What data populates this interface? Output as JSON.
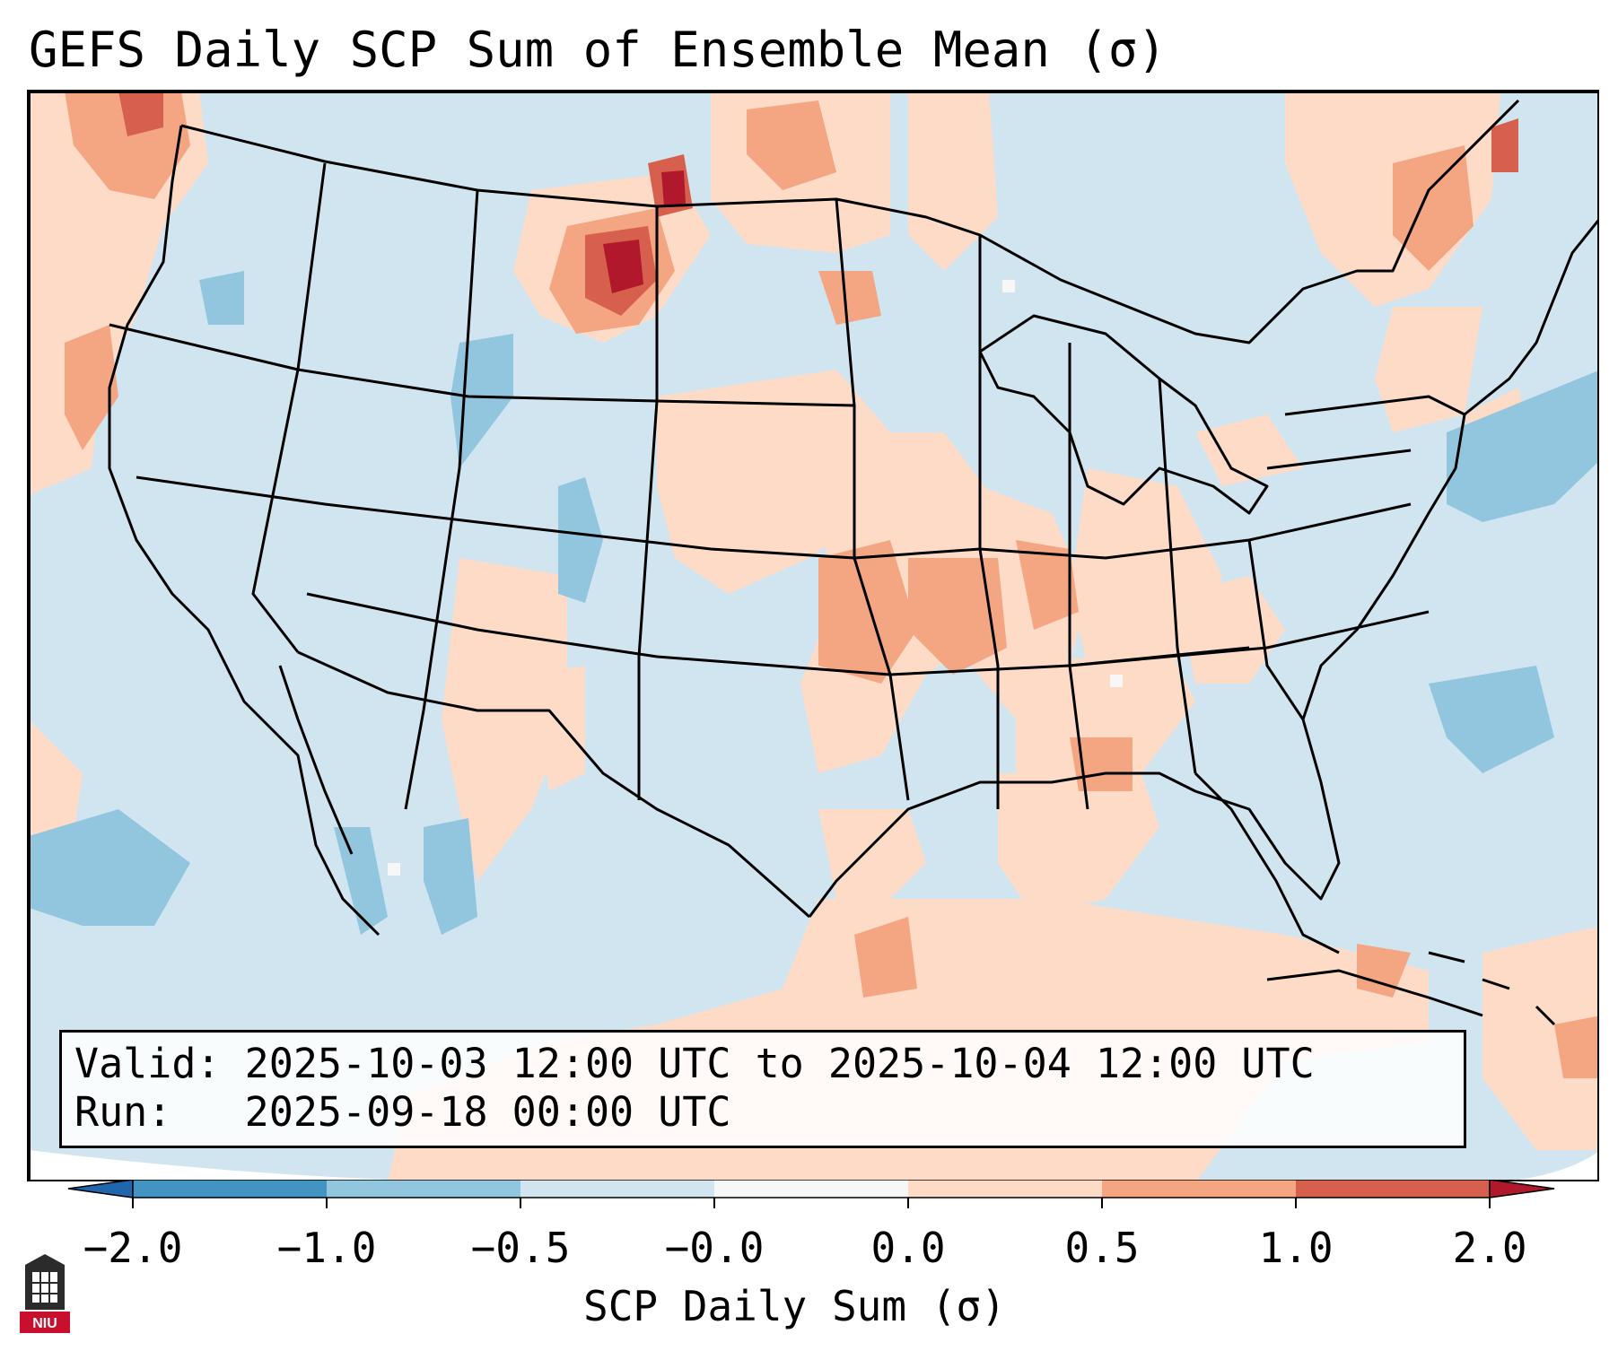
{
  "title": "GEFS Daily SCP Sum of Ensemble Mean (σ)",
  "valid_line": "Valid: 2025-10-03 12:00 UTC to 2025-10-04 12:00 UTC",
  "run_line": "Run:   2025-09-18 00:00 UTC",
  "colorbar": {
    "label": "SCP Daily Sum (σ)",
    "ticks": [
      "−2.0",
      "−1.0",
      "−0.5",
      "−0.0",
      "0.0",
      "0.5",
      "1.0",
      "2.0"
    ],
    "bins": [
      {
        "range": "<-2.0",
        "color": "#2166ac"
      },
      {
        "range": "-2.0 to -1.0",
        "color": "#4393c3"
      },
      {
        "range": "-1.0 to -0.5",
        "color": "#92c5de"
      },
      {
        "range": "-0.5 to -0.0",
        "color": "#d1e5f0"
      },
      {
        "range": "-0.0 to 0.0",
        "color": "#f7f7f7"
      },
      {
        "range": "0.0 to 0.5",
        "color": "#fddbc7"
      },
      {
        "range": "0.5 to 1.0",
        "color": "#f4a582"
      },
      {
        "range": "1.0 to 2.0",
        "color": "#d6604d"
      },
      {
        "range": ">2.0",
        "color": "#b2182b"
      }
    ]
  },
  "logo_text": "NIU",
  "colors": {
    "background_field": "#d1e5f0",
    "positive_light": "#fddbc7",
    "positive_mid": "#f4a582",
    "positive_strong": "#d6604d",
    "positive_max": "#b2182b",
    "negative_mid": "#92c5de",
    "neutral": "#f7f7f7",
    "logo_red": "#c8102e"
  }
}
